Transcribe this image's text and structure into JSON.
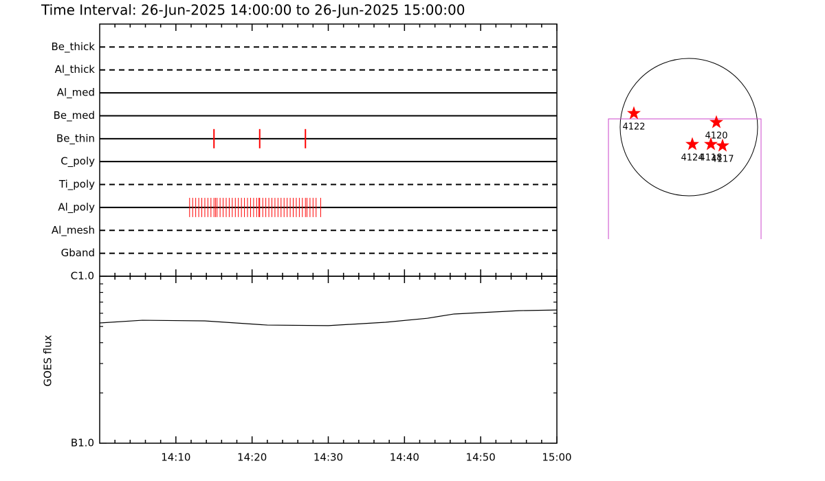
{
  "chart_data": [
    {
      "type": "timeline",
      "title": "Time Interval: 26-Jun-2025 14:00:00 to 26-Jun-2025 15:00:00",
      "color": "#ff0000",
      "xlim": [
        0,
        60
      ],
      "rows": [
        {
          "name": "Be_thick",
          "style": "dashed",
          "events": []
        },
        {
          "name": "Al_thick",
          "style": "dashed",
          "events": []
        },
        {
          "name": "Al_med",
          "style": "solid",
          "events": []
        },
        {
          "name": "Be_med",
          "style": "solid",
          "events": []
        },
        {
          "name": "Be_thin",
          "style": "solid",
          "events": [
            15,
            21,
            27
          ]
        },
        {
          "name": "C_poly",
          "style": "solid",
          "events": []
        },
        {
          "name": "Ti_poly",
          "style": "dashed",
          "events": []
        },
        {
          "name": "Al_poly",
          "style": "solid",
          "events": [
            11.8,
            12.2,
            12.6,
            13.0,
            13.4,
            13.8,
            14.2,
            14.6,
            15.0,
            15.2,
            15.4,
            15.8,
            16.2,
            16.6,
            17.0,
            17.4,
            17.8,
            18.2,
            18.6,
            19.0,
            19.4,
            19.8,
            20.2,
            20.6,
            20.9,
            21.0,
            21.4,
            21.8,
            22.2,
            22.6,
            23.0,
            23.4,
            23.8,
            24.2,
            24.6,
            25.0,
            25.4,
            25.8,
            26.2,
            26.6,
            27.0,
            27.2,
            27.6,
            28.0,
            28.4,
            29.0
          ]
        },
        {
          "name": "Al_mesh",
          "style": "dashed",
          "events": []
        },
        {
          "name": "Gband",
          "style": "dashed",
          "events": []
        }
      ]
    },
    {
      "type": "line",
      "ylabel": "GOES flux",
      "color": "#000000",
      "x": [
        0,
        5.6,
        13.8,
        22,
        30,
        37.5,
        43,
        46.5,
        55,
        60
      ],
      "values": [
        5.25e-07,
        5.45e-07,
        5.4e-07,
        5.1e-07,
        5.06e-07,
        5.3e-07,
        5.6e-07,
        5.94e-07,
        6.22e-07,
        6.28e-07
      ],
      "ylog": true,
      "ylim": [
        1e-07,
        1e-06
      ],
      "yticks": [
        {
          "value": 1e-07,
          "label": "B1.0"
        },
        {
          "value": 1e-06,
          "label": "C1.0"
        }
      ],
      "yminorticks": [
        2e-07,
        3e-07,
        4e-07,
        5e-07,
        6e-07,
        7e-07,
        8e-07,
        9e-07
      ],
      "xlim": [
        0,
        60
      ],
      "xticks": [
        {
          "value": 10,
          "label": "14:10"
        },
        {
          "value": 20,
          "label": "14:20"
        },
        {
          "value": 30,
          "label": "14:30"
        },
        {
          "value": 40,
          "label": "14:40"
        },
        {
          "value": 50,
          "label": "14:50"
        },
        {
          "value": 60,
          "label": "15:00"
        }
      ],
      "xminorticks": [
        2,
        4,
        6,
        8,
        12,
        14,
        16,
        18,
        22,
        24,
        26,
        28,
        32,
        34,
        36,
        38,
        42,
        44,
        46,
        48,
        52,
        54,
        56,
        58
      ]
    },
    {
      "type": "map",
      "radius": 960,
      "color": "#ff0000",
      "fov_color": "#cc44cc",
      "fov": {
        "xlim": [
          -1123,
          1008
        ],
        "ylim": [
          -1565,
          115
        ]
      },
      "points": [
        {
          "label": "4122",
          "x": -768,
          "y": 192
        },
        {
          "label": "4120",
          "x": 384,
          "y": 67
        },
        {
          "label": "4124",
          "x": 48,
          "y": -240
        },
        {
          "label": "4118",
          "x": 307,
          "y": -240
        },
        {
          "label": "4117",
          "x": 470,
          "y": -260
        }
      ]
    }
  ]
}
